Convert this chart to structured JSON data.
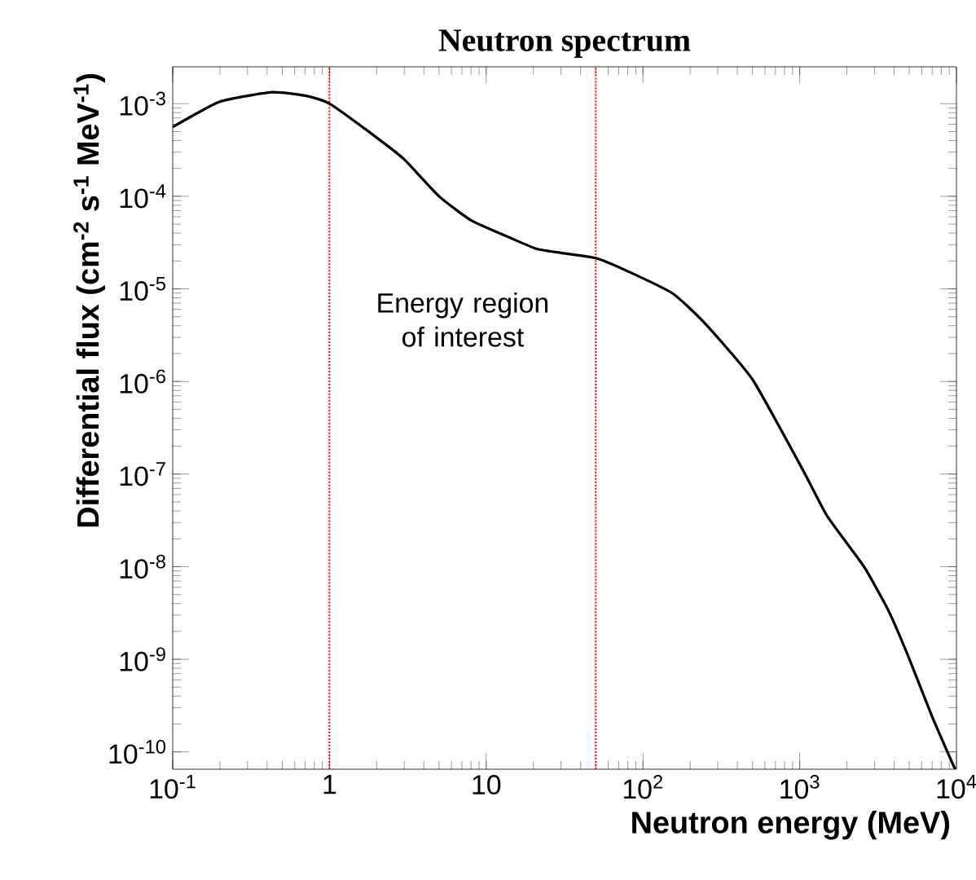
{
  "chart_data": {
    "type": "line",
    "title": "Neutron spectrum",
    "xlabel": "Neutron energy (MeV)",
    "ylabel": "Differential flux (cm$^{-2}$ s$^{-1}$ MeV$^{-1}$)",
    "log": "xy",
    "grid": false,
    "xlim": [
      0.1,
      10000
    ],
    "ylim": [
      6.5e-11,
      0.0025
    ],
    "xticks": [
      {
        "value": 0.1,
        "label": "10$^{-1}$"
      },
      1,
      10,
      {
        "value": 100,
        "label": "10$^{2}$"
      },
      {
        "value": 1000,
        "label": "10$^{3}$"
      },
      {
        "value": 10000,
        "label": "10$^{4}$"
      }
    ],
    "yticks": [
      {
        "value": 1e-10,
        "label": "10$^{-10}$"
      },
      {
        "value": 1e-09,
        "label": "10$^{-9}$"
      },
      {
        "value": 1e-08,
        "label": "10$^{-8}$"
      },
      {
        "value": 1e-07,
        "label": "10$^{-7}$"
      },
      {
        "value": 1e-06,
        "label": "10$^{-6}$"
      },
      {
        "value": 1e-05,
        "label": "10$^{-5}$"
      },
      {
        "value": 0.0001,
        "label": "10$^{-4}$"
      },
      {
        "value": 0.001,
        "label": "10$^{-3}$"
      }
    ],
    "series": [
      {
        "color": "#000000",
        "line_style": "solid",
        "marker": "none",
        "x": [
          0.1,
          0.2,
          0.43,
          0.7,
          1,
          2,
          3,
          5,
          8,
          14,
          21,
          30,
          50,
          80,
          155,
          250,
          500,
          1050,
          1500,
          2570,
          3700,
          4900,
          7000,
          9800
        ],
        "values": [
          0.00056,
          0.00105,
          0.00133,
          0.00122,
          0.001,
          0.00043,
          0.00025,
          0.0001,
          5.5e-05,
          3.6e-05,
          2.7e-05,
          2.45e-05,
          2.15e-05,
          1.55e-05,
          8.9e-06,
          4.2e-06,
          1.05e-06,
          1.1e-07,
          3.5e-08,
          1e-08,
          3.3e-09,
          1.1e-09,
          2.4e-10,
          6.5e-11
        ]
      }
    ],
    "ref_lines": [
      {
        "axis": "x",
        "value": 1,
        "color": "#ff0000",
        "line_style": "dotted"
      },
      {
        "axis": "x",
        "value": 50,
        "color": "#ff0000",
        "line_style": "dotted"
      }
    ],
    "annotations": [
      "Energy region of interest"
    ]
  }
}
